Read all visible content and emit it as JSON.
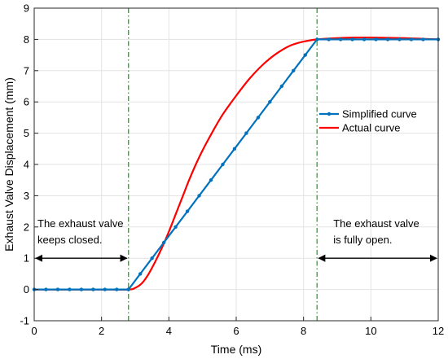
{
  "chart_data": {
    "type": "line",
    "xlabel": "Time (ms)",
    "ylabel": "Exhaust Valve Displacement (mm)",
    "xlim": [
      0,
      12
    ],
    "ylim": [
      -1,
      9
    ],
    "xticks": [
      0,
      2,
      4,
      6,
      8,
      10,
      12
    ],
    "yticks": [
      -1,
      0,
      1,
      2,
      3,
      4,
      5,
      6,
      7,
      8,
      9
    ],
    "grid": true,
    "legend_position": "right, mid-height",
    "series": [
      {
        "name": "Simplified curve",
        "color": "#0072BD",
        "marker": "dot",
        "x": [
          0,
          0.35,
          0.7,
          1.05,
          1.4,
          1.75,
          2.1,
          2.45,
          2.8,
          3.15,
          3.5,
          3.85,
          4.2,
          4.55,
          4.9,
          5.25,
          5.6,
          5.95,
          6.3,
          6.65,
          7.0,
          7.35,
          7.7,
          8.05,
          8.4,
          8.75,
          9.1,
          9.45,
          9.8,
          10.15,
          10.5,
          10.85,
          11.2,
          11.55,
          12.0
        ],
        "y": [
          0,
          0,
          0,
          0,
          0,
          0,
          0,
          0,
          0,
          0.5,
          1.0,
          1.5,
          2.0,
          2.5,
          3.0,
          3.5,
          4.0,
          4.5,
          5.0,
          5.5,
          6.0,
          6.5,
          7.0,
          7.5,
          8.0,
          8.0,
          8.0,
          8.0,
          8.0,
          8.0,
          8.0,
          8.0,
          8.0,
          8.0,
          8.0
        ]
      },
      {
        "name": "Actual curve",
        "color": "#FF0000",
        "marker": "none",
        "x": [
          0,
          1.0,
          2.0,
          2.8,
          3.0,
          3.2,
          3.4,
          3.6,
          3.8,
          4.0,
          4.2,
          4.4,
          4.6,
          4.8,
          5.0,
          5.3,
          5.6,
          6.0,
          6.4,
          6.8,
          7.2,
          7.6,
          8.0,
          8.4,
          8.8,
          9.2,
          9.6,
          10.0,
          10.5,
          11.0,
          11.5,
          12.0
        ],
        "y": [
          0,
          0,
          0,
          0,
          0.05,
          0.2,
          0.5,
          0.9,
          1.35,
          1.85,
          2.4,
          2.95,
          3.5,
          4.0,
          4.45,
          5.05,
          5.6,
          6.2,
          6.75,
          7.2,
          7.55,
          7.8,
          7.93,
          8.0,
          8.03,
          8.05,
          8.06,
          8.06,
          8.05,
          8.04,
          8.02,
          8.0
        ]
      }
    ],
    "vertical_lines": [
      {
        "x": 2.8,
        "style": "dash-dot",
        "color": "#2CA02C"
      },
      {
        "x": 8.4,
        "style": "dash-dot",
        "color": "#2CA02C"
      }
    ],
    "annotations": [
      {
        "lines": [
          "The exhaust valve",
          "keeps closed."
        ],
        "arrow_from_x": 0,
        "arrow_to_x": 2.8,
        "arrow_y": 1
      },
      {
        "lines": [
          "The exhaust valve",
          "is fully open."
        ],
        "arrow_from_x": 8.4,
        "arrow_to_x": 12,
        "arrow_y": 1
      }
    ]
  }
}
